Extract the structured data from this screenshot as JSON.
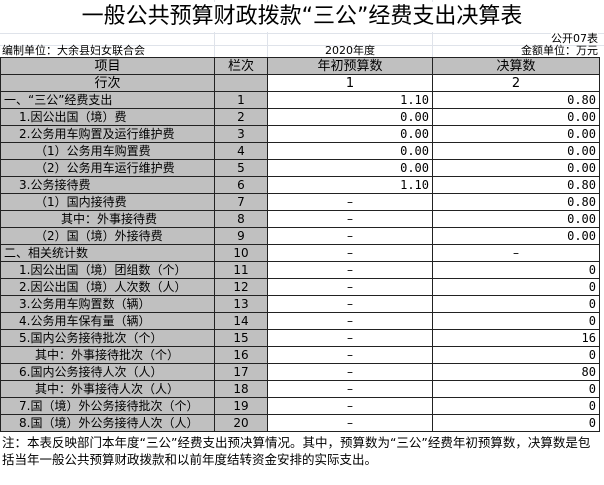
{
  "title": "一般公共预算财政拨款“三公”经费支出决算表",
  "form_code": "公开07表",
  "unit": "编制单位：大余县妇女联合会",
  "year": "2020年度",
  "money_unit": "金额单位：万元",
  "headers": {
    "item": "项目",
    "col": "栏次",
    "budget": "年初预算数",
    "final": "决算数"
  },
  "row_index": {
    "label": "行次",
    "budget": "1",
    "final": "2"
  },
  "rows": [
    {
      "item": "一、“三公”经费支出",
      "no": "1",
      "budget": "1.10",
      "final": "0.80",
      "lvl": 0
    },
    {
      "item": "1.因公出国（境）费",
      "no": "2",
      "budget": "0.00",
      "final": "0.00",
      "lvl": 1
    },
    {
      "item": "2.公务用车购置及运行维护费",
      "no": "3",
      "budget": "0.00",
      "final": "0.00",
      "lvl": 1
    },
    {
      "item": "（1）公务用车购置费",
      "no": "4",
      "budget": "0.00",
      "final": "0.00",
      "lvl": 2
    },
    {
      "item": "（2）公务用车运行维护费",
      "no": "5",
      "budget": "0.00",
      "final": "0.00",
      "lvl": 2
    },
    {
      "item": "3.公务接待费",
      "no": "6",
      "budget": "1.10",
      "final": "0.80",
      "lvl": 1
    },
    {
      "item": "（1）国内接待费",
      "no": "7",
      "budget": "–",
      "final": "0.80",
      "lvl": 2
    },
    {
      "item": "其中：外事接待费",
      "no": "8",
      "budget": "–",
      "final": "0.00",
      "lvl": 3
    },
    {
      "item": "（2）国（境）外接待费",
      "no": "9",
      "budget": "–",
      "final": "0.00",
      "lvl": 2
    },
    {
      "item": "二、相关统计数",
      "no": "10",
      "budget": "–",
      "final": "–",
      "lvl": 0
    },
    {
      "item": "1.因公出国（境）团组数（个）",
      "no": "11",
      "budget": "–",
      "final": "0",
      "lvl": 1
    },
    {
      "item": "2.因公出国（境）人次数（人）",
      "no": "12",
      "budget": "–",
      "final": "0",
      "lvl": 1
    },
    {
      "item": "3.公务用车购置数（辆）",
      "no": "13",
      "budget": "–",
      "final": "0",
      "lvl": 1
    },
    {
      "item": "4.公务用车保有量（辆）",
      "no": "14",
      "budget": "–",
      "final": "0",
      "lvl": 1
    },
    {
      "item": "5.国内公务接待批次（个）",
      "no": "15",
      "budget": "–",
      "final": "16",
      "lvl": 1
    },
    {
      "item": "其中：外事接待批次（个）",
      "no": "16",
      "budget": "–",
      "final": "0",
      "lvl": 2
    },
    {
      "item": "6.国内公务接待人次（人）",
      "no": "17",
      "budget": "–",
      "final": "80",
      "lvl": 1
    },
    {
      "item": "其中：外事接待人次（人）",
      "no": "18",
      "budget": "–",
      "final": "0",
      "lvl": 2
    },
    {
      "item": "7.国（境）外公务接待批次（个）",
      "no": "19",
      "budget": "–",
      "final": "0",
      "lvl": 1
    },
    {
      "item": "8.国（境）外公务接待人次（人）",
      "no": "20",
      "budget": "–",
      "final": "0",
      "lvl": 1
    }
  ],
  "note": "注：本表反映部门本年度“三公”经费支出预决算情况。其中，预算数为“三公”经费年初预算数，决算数是包括当年一般公共预算财政拨款和以前年度结转资金安排的实际支出。"
}
